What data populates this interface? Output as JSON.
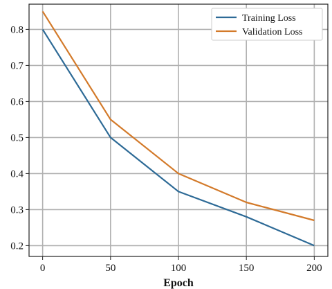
{
  "chart_data": {
    "type": "line",
    "title": "",
    "xlabel": "Epoch",
    "ylabel": "",
    "x": [
      0,
      50,
      100,
      150,
      200
    ],
    "xticks": [
      "0",
      "50",
      "100",
      "150",
      "200"
    ],
    "yticks": [
      "0.2",
      "0.3",
      "0.4",
      "0.5",
      "0.6",
      "0.7",
      "0.8"
    ],
    "xlim": [
      -10,
      210
    ],
    "ylim": [
      0.17,
      0.87
    ],
    "grid": true,
    "legend_position": "top-right",
    "series": [
      {
        "name": "Training Loss",
        "color": "#2d6a96",
        "values": [
          0.8,
          0.5,
          0.35,
          0.28,
          0.2
        ]
      },
      {
        "name": "Validation Loss",
        "color": "#d37a2a",
        "values": [
          0.85,
          0.55,
          0.4,
          0.32,
          0.27
        ]
      }
    ]
  }
}
